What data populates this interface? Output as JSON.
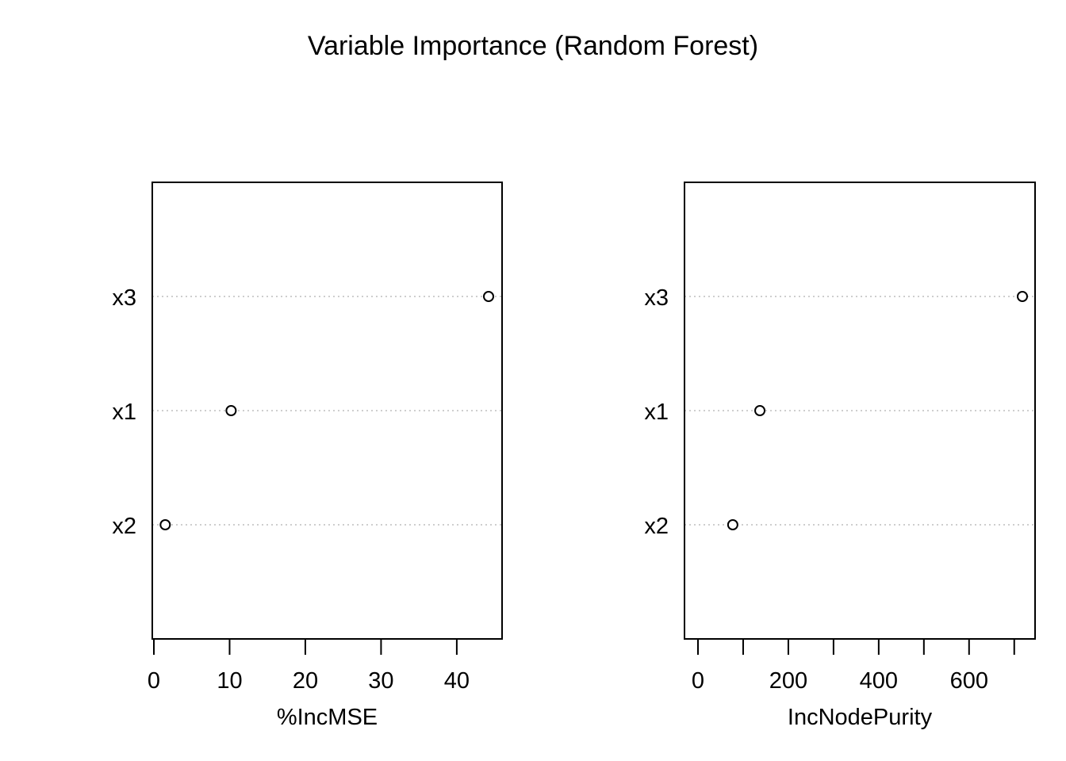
{
  "title": "Variable Importance (Random Forest)",
  "colors": {
    "frame": "#000000",
    "gridline": "#bebebe",
    "point_stroke": "#000000",
    "point_fill": "#ffffff"
  },
  "chart_data": [
    {
      "type": "scatter",
      "subtype": "dotchart",
      "categories": [
        "x2",
        "x1",
        "x3"
      ],
      "values": [
        1.5,
        10.2,
        44.2
      ],
      "xlabel": "%IncMSE",
      "ylabel": "",
      "xlim": [
        0,
        44.2
      ],
      "xticks": [
        0,
        10,
        20,
        30,
        40
      ],
      "xtick_labels": [
        "0",
        "10",
        "20",
        "30",
        "40"
      ],
      "grid": "dotted horizontal lines at each category"
    },
    {
      "type": "scatter",
      "subtype": "dotchart",
      "categories": [
        "x2",
        "x1",
        "x3"
      ],
      "values": [
        77,
        137,
        718
      ],
      "xlabel": "IncNodePurity",
      "ylabel": "",
      "xlim": [
        0,
        718
      ],
      "xticks": [
        0,
        100,
        200,
        300,
        400,
        500,
        600,
        700
      ],
      "xtick_labels": [
        "0",
        "",
        "200",
        "",
        "400",
        "",
        "600",
        ""
      ],
      "grid": "dotted horizontal lines at each category"
    }
  ]
}
